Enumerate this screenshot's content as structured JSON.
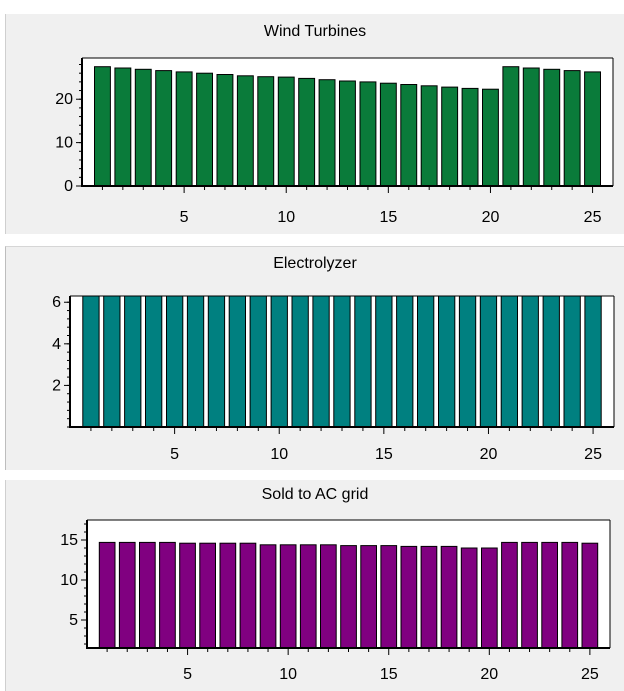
{
  "chart_data": [
    {
      "type": "bar",
      "title": "Wind Turbines",
      "xlabel": "",
      "ylabel": "",
      "x": [
        1,
        2,
        3,
        4,
        5,
        6,
        7,
        8,
        9,
        10,
        11,
        12,
        13,
        14,
        15,
        16,
        17,
        18,
        19,
        20,
        21,
        22,
        23,
        24,
        25
      ],
      "values": [
        27.5,
        27.2,
        26.9,
        26.6,
        26.3,
        26.0,
        25.7,
        25.4,
        25.2,
        25.1,
        24.8,
        24.5,
        24.2,
        24.0,
        23.7,
        23.4,
        23.1,
        22.8,
        22.5,
        22.3,
        27.5,
        27.2,
        26.9,
        26.6,
        26.3
      ],
      "xlim": [
        0,
        26
      ],
      "ylim": [
        0,
        29.5
      ],
      "yticks": [
        0,
        10,
        20
      ],
      "xticks": [
        5,
        10,
        15,
        20,
        25
      ],
      "grid": false,
      "color": "#0a7b3a"
    },
    {
      "type": "bar",
      "title": "Electrolyzer",
      "xlabel": "",
      "ylabel": "",
      "x": [
        1,
        2,
        3,
        4,
        5,
        6,
        7,
        8,
        9,
        10,
        11,
        12,
        13,
        14,
        15,
        16,
        17,
        18,
        19,
        20,
        21,
        22,
        23,
        24,
        25
      ],
      "values": [
        6.3,
        6.3,
        6.3,
        6.3,
        6.3,
        6.3,
        6.3,
        6.3,
        6.3,
        6.3,
        6.3,
        6.3,
        6.3,
        6.3,
        6.3,
        6.3,
        6.3,
        6.3,
        6.3,
        6.3,
        6.3,
        6.3,
        6.3,
        6.3,
        6.3
      ],
      "xlim": [
        0,
        26
      ],
      "ylim": [
        0,
        6.3
      ],
      "yticks": [
        2,
        4,
        6
      ],
      "xticks": [
        5,
        10,
        15,
        20,
        25
      ],
      "grid": false,
      "color": "#008080"
    },
    {
      "type": "bar",
      "title": "Sold to AC grid",
      "xlabel": "",
      "ylabel": "",
      "x": [
        1,
        2,
        3,
        4,
        5,
        6,
        7,
        8,
        9,
        10,
        11,
        12,
        13,
        14,
        15,
        16,
        17,
        18,
        19,
        20,
        21,
        22,
        23,
        24,
        25
      ],
      "values": [
        14.7,
        14.7,
        14.7,
        14.7,
        14.6,
        14.6,
        14.6,
        14.6,
        14.4,
        14.4,
        14.4,
        14.4,
        14.3,
        14.3,
        14.3,
        14.2,
        14.2,
        14.2,
        14.0,
        14.0,
        14.7,
        14.7,
        14.7,
        14.7,
        14.6
      ],
      "xlim": [
        0,
        26
      ],
      "ylim": [
        1.5,
        17.5
      ],
      "yticks": [
        5,
        10,
        15
      ],
      "xticks": [
        5,
        10,
        15,
        20,
        25
      ],
      "grid": false,
      "color": "#800080"
    }
  ]
}
